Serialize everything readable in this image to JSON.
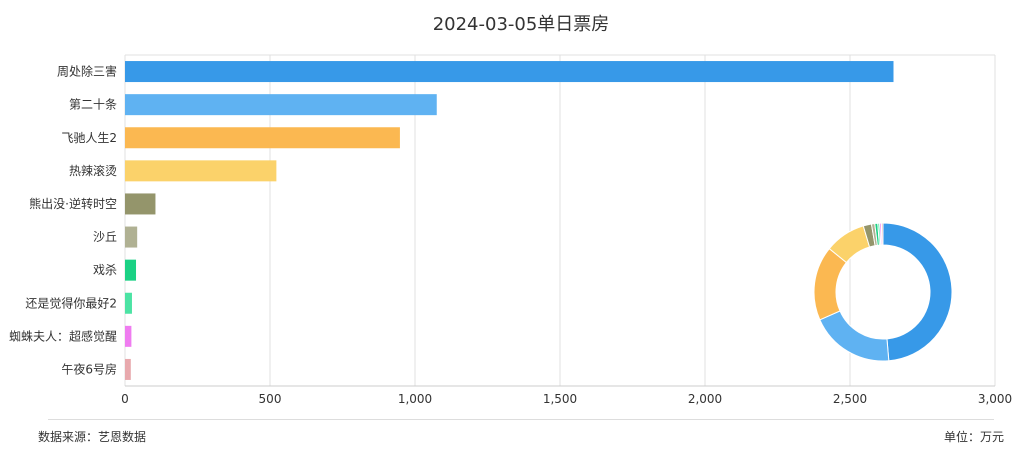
{
  "chart_data": {
    "type": "bar",
    "orientation": "horizontal",
    "title": "2024-03-05单日票房",
    "categories": [
      "周处除三害",
      "第二十条",
      "飞驰人生2",
      "热辣滚烫",
      "熊出没·逆转时空",
      "沙丘",
      "戏杀",
      "还是觉得你最好2",
      "蜘蛛夫人：超感觉醒",
      "午夜6号房"
    ],
    "values": [
      2650,
      1075,
      948,
      522,
      105,
      42,
      38,
      24,
      22,
      20
    ],
    "colors": [
      "#3799e8",
      "#5fb2f2",
      "#fbb851",
      "#fbd26a",
      "#94956b",
      "#b0b193",
      "#1bd184",
      "#4ce3a4",
      "#ef7cf0",
      "#e8a9ad"
    ],
    "xlim": [
      0,
      3000
    ],
    "xticks": [
      0,
      500,
      1000,
      1500,
      2000,
      2500,
      3000
    ],
    "xtick_labels": [
      "0",
      "500",
      "1,000",
      "1,500",
      "2,000",
      "2,500",
      "3,000"
    ],
    "grid": true,
    "inset_donut": true
  },
  "footer": {
    "source": "数据来源：艺恩数据",
    "unit": "单位：万元"
  }
}
